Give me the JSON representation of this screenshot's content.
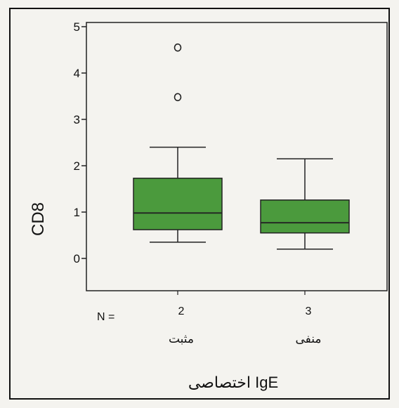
{
  "chart_data": {
    "type": "boxplot",
    "title": "",
    "ylabel": "CD8",
    "xlabel": "IgE اختصاصی",
    "n_label": "N =",
    "ylim": [
      -1,
      5
    ],
    "yticks": [
      0,
      1,
      2,
      3,
      4,
      5
    ],
    "grid": false,
    "box_color": "#4b9a3d",
    "groups": [
      {
        "category": "مثبت",
        "n": "2",
        "whisker_low": 0.35,
        "q1": 0.62,
        "median": 0.98,
        "q3": 1.73,
        "whisker_high": 2.4,
        "outliers": [
          3.48,
          4.55
        ]
      },
      {
        "category": "منفی",
        "n": "3",
        "whisker_low": 0.2,
        "q1": 0.55,
        "median": 0.77,
        "q3": 1.26,
        "whisker_high": 2.15,
        "outliers": []
      }
    ]
  }
}
